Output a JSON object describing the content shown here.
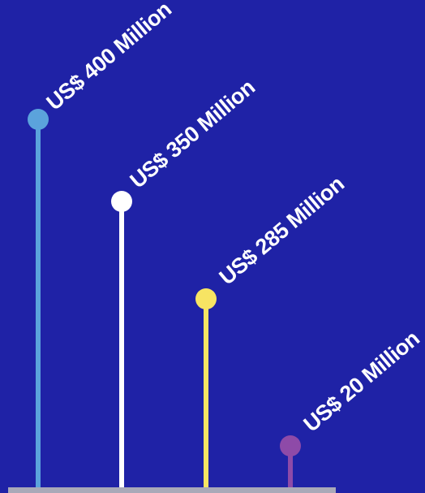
{
  "chart_data": {
    "type": "bar",
    "style": "lollipop",
    "categories": [
      "",
      "",
      "",
      ""
    ],
    "values": [
      400,
      350,
      285,
      20
    ],
    "value_labels": [
      "US$ 400 Million",
      "US$ 350 Million",
      "US$ 285 Million",
      "US$  20 Million"
    ],
    "unit": "US$ Million",
    "colors": [
      "#5ba3dc",
      "#ffffff",
      "#f7e463",
      "#8e4aa8"
    ],
    "background": "#1f22a6",
    "baseline_color": "#a9a9b8",
    "title": "",
    "xlabel": "",
    "ylabel": "",
    "ylim": [
      0,
      400
    ],
    "grid": false,
    "legend": "none"
  }
}
